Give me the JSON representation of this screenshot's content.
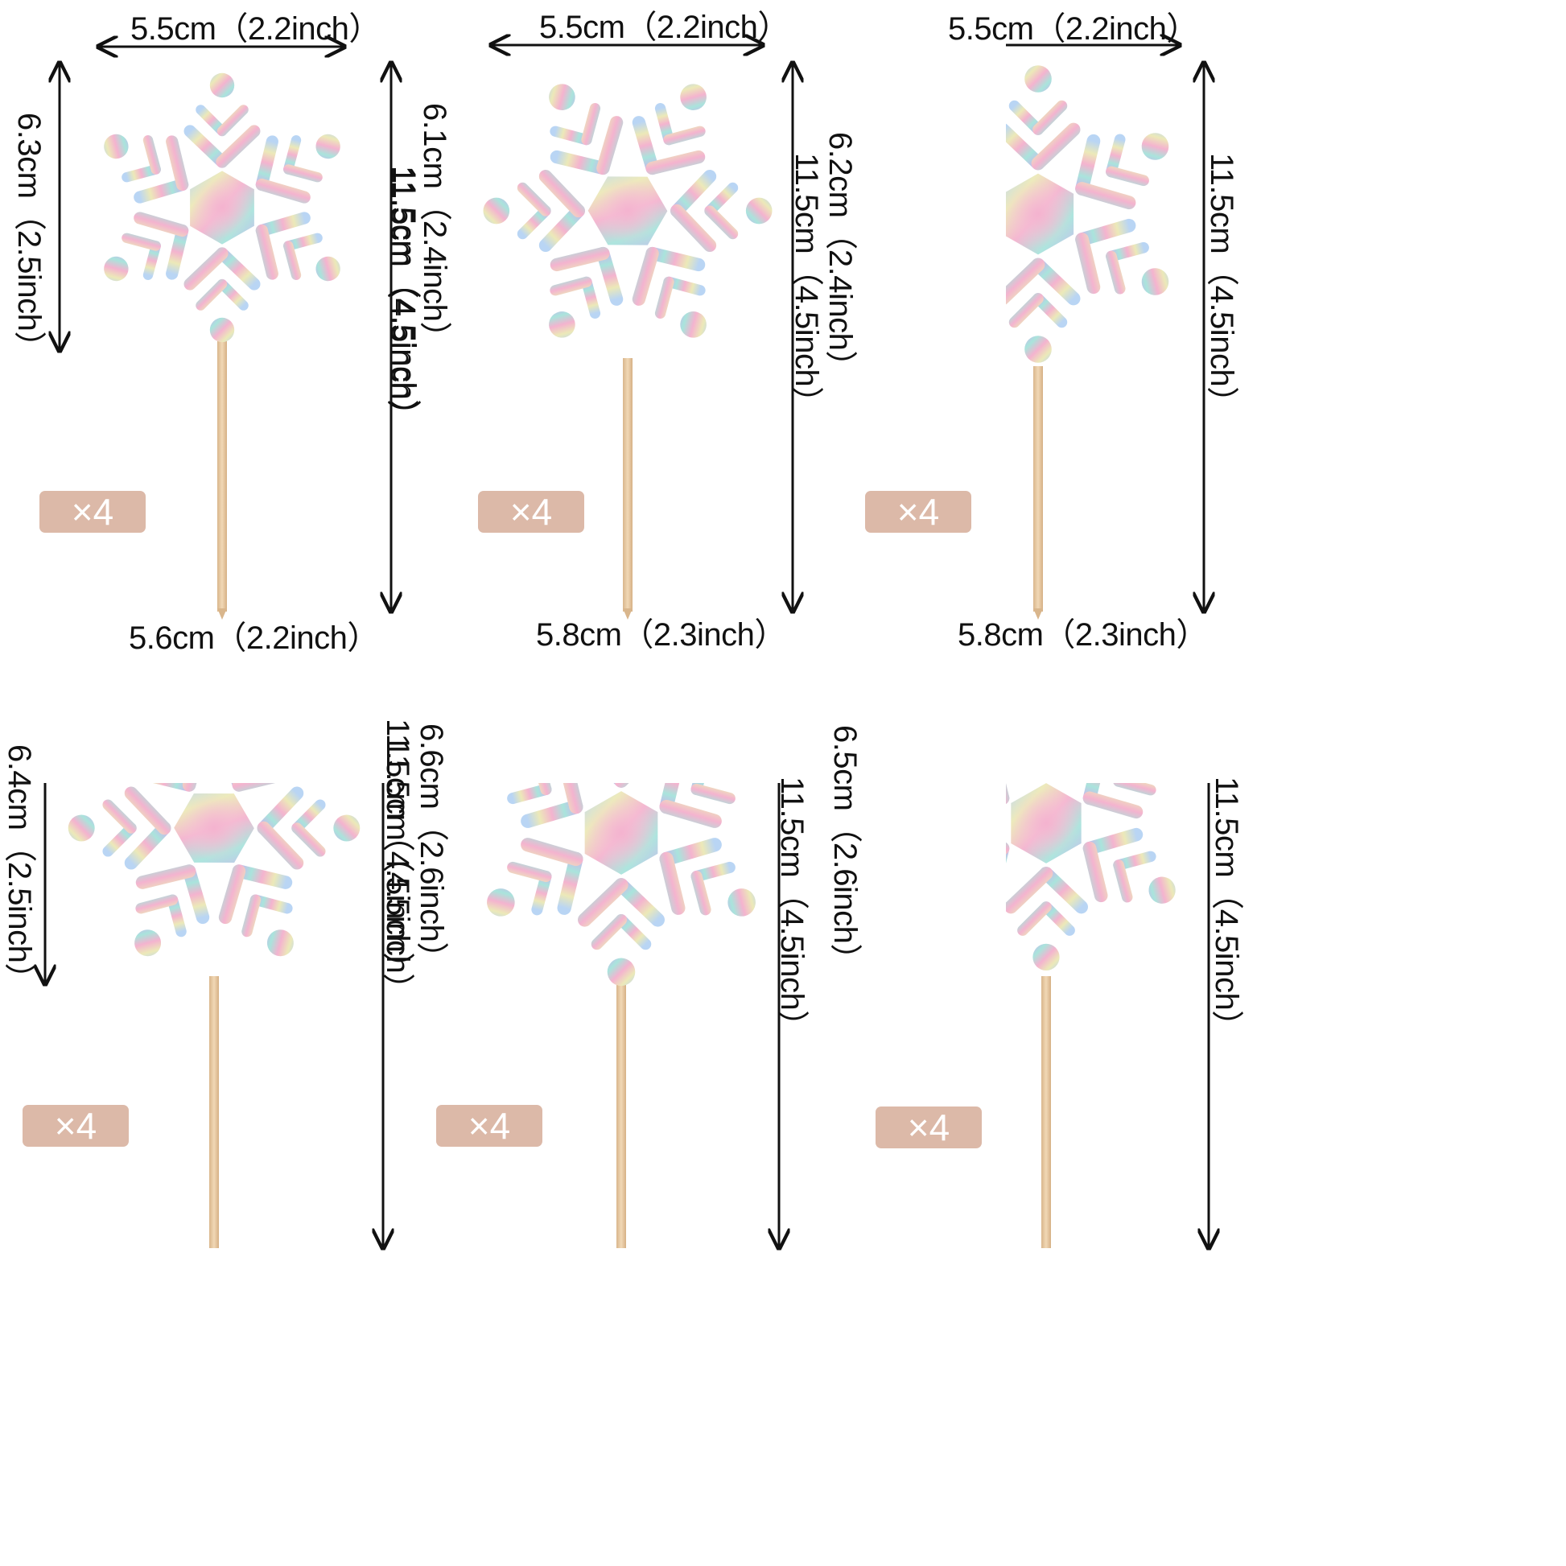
{
  "colors": {
    "badge": "#dcb9a8",
    "stick": "#e2c59f",
    "iridescent": [
      "#f7c6d8",
      "#f4b3cf",
      "#b9d5f4",
      "#a9e4dc",
      "#ece9b8",
      "#c9b5ec"
    ]
  },
  "toppers": [
    {
      "id": "t1",
      "width": "5.5cm（2.2inch）",
      "head_height": "6.3cm（2.5inch）",
      "total_height": "11.5cm（4.5inch）",
      "qty": "×4",
      "icon": "snowflake-icon"
    },
    {
      "id": "t2",
      "width": "5.5cm（2.2inch）",
      "head_height": "6.1cm（2.4inch）",
      "total_height": "11.5cm（4.5inch）",
      "qty": "×4",
      "icon": "snowflake-icon"
    },
    {
      "id": "t3",
      "width": "5.5cm（2.2inch）",
      "head_height": "6.2cm（2.4inch）",
      "total_height": "11.5cm（4.5inch）",
      "qty": "×4",
      "icon": "snowflake-icon"
    },
    {
      "id": "t4",
      "width": "5.6cm（2.2inch）",
      "head_height": "6.4cm（2.5inch）",
      "total_height": "11.5cm（4.5inch）",
      "qty": "×4",
      "icon": "snowflake-icon"
    },
    {
      "id": "t5",
      "width": "5.8cm（2.3inch）",
      "head_height": "6.6cm（2.6inch）",
      "total_height": "11.5cm（4.5inch）",
      "qty": "×4",
      "icon": "snowflake-icon"
    },
    {
      "id": "t6",
      "width": "5.8cm（2.3inch）",
      "head_height": "6.5cm（2.6inch）",
      "total_height": "11.5cm（4.5inch）",
      "qty": "×4",
      "icon": "snowflake-icon"
    }
  ]
}
